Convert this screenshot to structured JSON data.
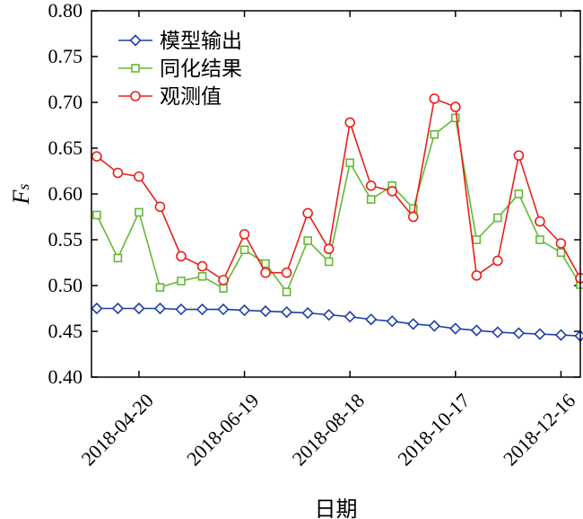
{
  "chart_data": {
    "type": "line",
    "xlabel": "日期",
    "ylabel": "Fs",
    "ylim": [
      0.4,
      0.8
    ],
    "yticks": [
      "0.40",
      "0.45",
      "0.50",
      "0.55",
      "0.60",
      "0.65",
      "0.70",
      "0.75",
      "0.80"
    ],
    "xticks": [
      "2018-04-20",
      "2018-06-19",
      "2018-08-18",
      "2018-10-17",
      "2018-12-16"
    ],
    "xlim": [
      "2018-03-24",
      "2018-12-27"
    ],
    "grid": false,
    "legend_position": "top-left",
    "x": [
      "2018-03-27",
      "2018-04-08",
      "2018-04-20",
      "2018-05-02",
      "2018-05-14",
      "2018-05-26",
      "2018-06-07",
      "2018-06-19",
      "2018-07-01",
      "2018-07-13",
      "2018-07-25",
      "2018-08-06",
      "2018-08-18",
      "2018-08-30",
      "2018-09-11",
      "2018-09-23",
      "2018-10-05",
      "2018-10-17",
      "2018-10-29",
      "2018-11-10",
      "2018-11-22",
      "2018-12-04",
      "2018-12-16",
      "2018-12-27"
    ],
    "series": [
      {
        "name": "模型输出",
        "color": "#1f3fa8",
        "marker": "diamond",
        "values": [
          0.475,
          0.475,
          0.475,
          0.475,
          0.474,
          0.474,
          0.474,
          0.473,
          0.472,
          0.471,
          0.47,
          0.468,
          0.466,
          0.463,
          0.461,
          0.458,
          0.456,
          0.453,
          0.451,
          0.449,
          0.448,
          0.447,
          0.446,
          0.445
        ]
      },
      {
        "name": "同化结果",
        "color": "#66b832",
        "marker": "square",
        "values": [
          0.577,
          0.53,
          0.58,
          0.498,
          0.505,
          0.51,
          0.497,
          0.539,
          0.524,
          0.493,
          0.549,
          0.526,
          0.634,
          0.594,
          0.609,
          0.584,
          0.665,
          0.683,
          0.55,
          0.574,
          0.6,
          0.55,
          0.536,
          0.501
        ]
      },
      {
        "name": "观测值",
        "color": "#e8211b",
        "marker": "circle",
        "values": [
          0.641,
          0.623,
          0.619,
          0.586,
          0.532,
          0.521,
          0.506,
          0.556,
          0.514,
          0.514,
          0.579,
          0.54,
          0.678,
          0.609,
          0.603,
          0.575,
          0.704,
          0.695,
          0.511,
          0.527,
          0.642,
          0.57,
          0.546,
          0.508
        ]
      }
    ]
  }
}
